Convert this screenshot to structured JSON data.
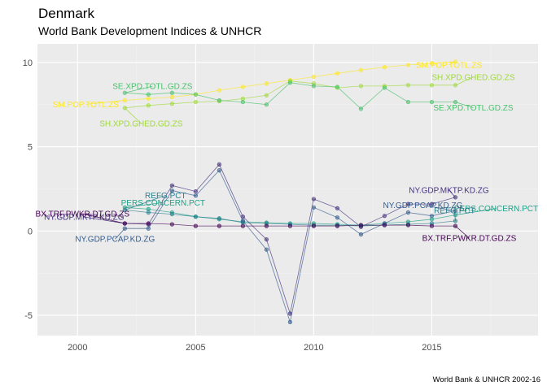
{
  "chart_data": {
    "type": "line",
    "title": "Denmark",
    "subtitle": "World Bank Development Indices & UNHCR",
    "caption": "World Bank & UNHCR 2002-16",
    "xlabel": "",
    "ylabel": "",
    "xlim": [
      1998.3,
      2019.5
    ],
    "ylim": [
      -6.2,
      11.1
    ],
    "x_ticks": [
      2000,
      2005,
      2010,
      2015
    ],
    "y_ticks": [
      -5,
      0,
      5,
      10
    ],
    "x_tick_labels": [
      "2000",
      "2005",
      "2010",
      "2015"
    ],
    "y_tick_labels": [
      "-5",
      "0",
      "5",
      "10"
    ],
    "grid": true,
    "legend": "none (direct labels)",
    "background": "#ebebeb",
    "series": [
      {
        "name": "SM.POP.TOTL.ZS",
        "color": "#fde725",
        "x": [
          2002,
          2003,
          2004,
          2005,
          2006,
          2007,
          2008,
          2009,
          2010,
          2011,
          2012,
          2013,
          2014,
          2015,
          2016
        ],
        "values": [
          7.75,
          7.85,
          7.95,
          8.1,
          8.35,
          8.55,
          8.75,
          8.95,
          9.15,
          9.35,
          9.55,
          9.72,
          9.85,
          9.95,
          10.05
        ],
        "label_start": "SM.POP.TOTL.ZS",
        "label_end": "SM.POP.TOTL.ZS"
      },
      {
        "name": "SH.XPD.GHED.GD.ZS",
        "color": "#a0da39",
        "x": [
          2002,
          2003,
          2004,
          2005,
          2006,
          2007,
          2008,
          2009,
          2010,
          2011,
          2012,
          2013,
          2014,
          2015,
          2016
        ],
        "values": [
          7.3,
          7.45,
          7.55,
          7.65,
          7.7,
          7.85,
          8.05,
          8.9,
          8.75,
          8.5,
          8.6,
          8.6,
          8.65,
          8.65,
          8.65
        ],
        "label_start": "SH.XPD.GHED.GD.ZS",
        "label_end": "SH.XPD.GHED.GD.ZS"
      },
      {
        "name": "SE.XPD.TOTL.GD.ZS",
        "color": "#4ac16d",
        "x": [
          2002,
          2003,
          2004,
          2005,
          2006,
          2007,
          2008,
          2009,
          2010,
          2011,
          2012,
          2013,
          2014,
          2015,
          2016
        ],
        "values": [
          8.2,
          8.1,
          8.2,
          8.1,
          7.75,
          7.65,
          7.5,
          8.8,
          8.6,
          8.55,
          7.25,
          8.5,
          7.65,
          7.65,
          7.65
        ],
        "label_start": "SE.XPD.TOTL.GD.ZS",
        "label_end": "SE.XPD.TOTL.GD.ZS"
      },
      {
        "name": "PERS.CONCERN.PCT",
        "color": "#1fa187",
        "x": [
          2002,
          2003,
          2004,
          2005,
          2006,
          2007,
          2008,
          2009,
          2010,
          2011,
          2012,
          2013,
          2014,
          2015,
          2016
        ],
        "values": [
          1.4,
          1.3,
          1.1,
          0.85,
          0.7,
          0.55,
          0.5,
          0.45,
          0.45,
          0.4,
          0.35,
          0.45,
          0.55,
          0.7,
          0.95
        ],
        "label_start": "PERS.CONCERN.PCT",
        "label_end": "PERS.CONCERN.PCT"
      },
      {
        "name": "REFG.PCT",
        "color": "#277f8e",
        "x": [
          2002,
          2003,
          2004,
          2005,
          2006,
          2007,
          2008,
          2009,
          2010,
          2011,
          2012,
          2013,
          2014,
          2015,
          2016
        ],
        "values": [
          1.25,
          1.1,
          1.0,
          0.85,
          0.75,
          0.5,
          0.45,
          0.4,
          0.35,
          0.35,
          0.3,
          0.35,
          0.4,
          0.45,
          0.6
        ],
        "label_start": "REFG.PCT",
        "label_end": "REFG.PCT"
      },
      {
        "name": "NY.GDP.PCAP.KD.ZG",
        "color": "#365c8d",
        "x": [
          2002,
          2003,
          2004,
          2005,
          2006,
          2007,
          2008,
          2009,
          2010,
          2011,
          2012,
          2013,
          2014,
          2015,
          2016
        ],
        "values": [
          0.15,
          0.15,
          2.4,
          2.1,
          3.6,
          0.6,
          -1.1,
          -5.4,
          1.4,
          0.8,
          -0.2,
          0.45,
          1.1,
          0.9,
          1.2
        ],
        "label_start": "NY.GDP.PCAP.KD.ZG",
        "label_end": "NY.GDP.PCAP.KD.ZG"
      },
      {
        "name": "NY.GDP.MKTP.KD.ZG",
        "color": "#46327e",
        "x": [
          2002,
          2003,
          2004,
          2005,
          2006,
          2007,
          2008,
          2009,
          2010,
          2011,
          2012,
          2013,
          2014,
          2015,
          2016
        ],
        "values": [
          0.45,
          0.4,
          2.7,
          2.35,
          3.95,
          0.85,
          -0.5,
          -4.9,
          1.9,
          1.35,
          0.25,
          0.9,
          1.6,
          1.6,
          2.0
        ],
        "label_start": "NY.GDP.MKTP.KD.ZG",
        "label_end": "NY.GDP.MKTP.KD.ZG"
      },
      {
        "name": "BX.TRF.PWKR.DT.GD.ZS",
        "color": "#440154",
        "x": [
          2002,
          2003,
          2004,
          2005,
          2006,
          2007,
          2008,
          2009,
          2010,
          2011,
          2012,
          2013,
          2014,
          2015,
          2016
        ],
        "values": [
          0.45,
          0.45,
          0.4,
          0.3,
          0.3,
          0.3,
          0.3,
          0.3,
          0.3,
          0.3,
          0.35,
          0.35,
          0.35,
          0.3,
          0.3
        ],
        "label_start": "BX.TRF.PWKR.DT.GD.ZS",
        "label_end": "BX.TRF.PWKR.DT.GD.ZS"
      }
    ]
  }
}
